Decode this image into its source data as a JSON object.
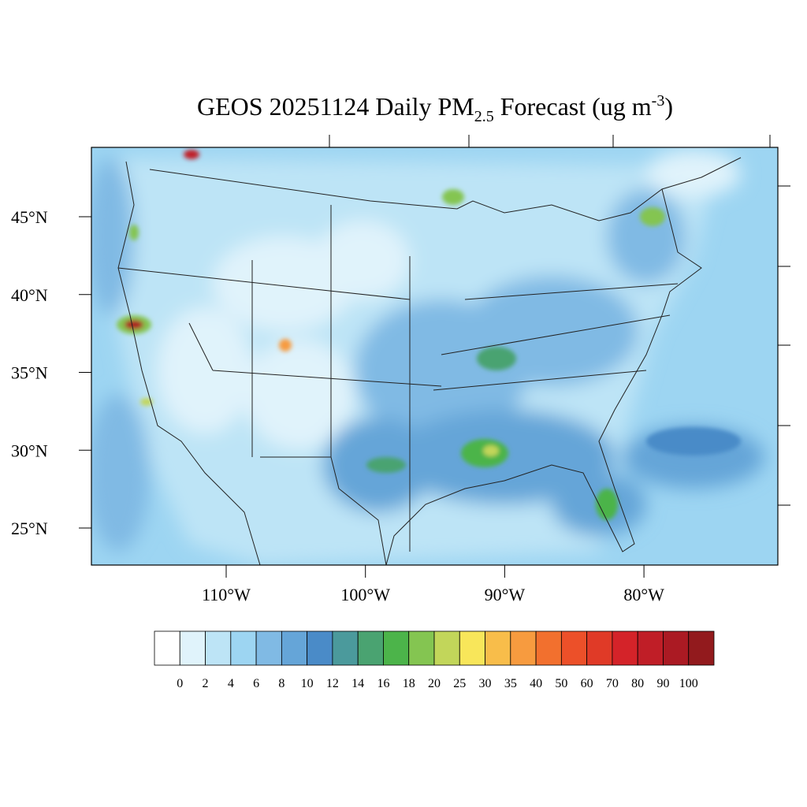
{
  "title": {
    "main": "GEOS 20251124 Daily PM",
    "sub": "2.5",
    "rest": " Forecast (ug m",
    "sup": "-3",
    "close": ")"
  },
  "map": {
    "lat_ticks": [
      {
        "value": 45,
        "label": "45°N"
      },
      {
        "value": 40,
        "label": "40°N"
      },
      {
        "value": 35,
        "label": "35°N"
      },
      {
        "value": 30,
        "label": "30°N"
      },
      {
        "value": 25,
        "label": "25°N"
      }
    ],
    "lon_ticks": [
      {
        "value": -110,
        "label": "110°W"
      },
      {
        "value": -100,
        "label": "100°W"
      },
      {
        "value": -90,
        "label": "90°W"
      },
      {
        "value": -80,
        "label": "80°W"
      }
    ]
  },
  "colorbar": {
    "levels": [
      0,
      2,
      4,
      6,
      8,
      10,
      12,
      14,
      16,
      18,
      20,
      25,
      30,
      35,
      40,
      50,
      60,
      70,
      80,
      90,
      100
    ],
    "colors": [
      "#ffffff",
      "#e0f3fb",
      "#bde4f6",
      "#9dd5f2",
      "#80bae4",
      "#65a5d8",
      "#4a8bc8",
      "#4b9a9c",
      "#4aa371",
      "#4cb44a",
      "#84c551",
      "#c2d65a",
      "#f8e65a",
      "#f8bd4a",
      "#f79b3f",
      "#f2702e",
      "#ec5029",
      "#e03a27",
      "#d42329",
      "#c01e27",
      "#ab1a23",
      "#921a1d"
    ]
  }
}
